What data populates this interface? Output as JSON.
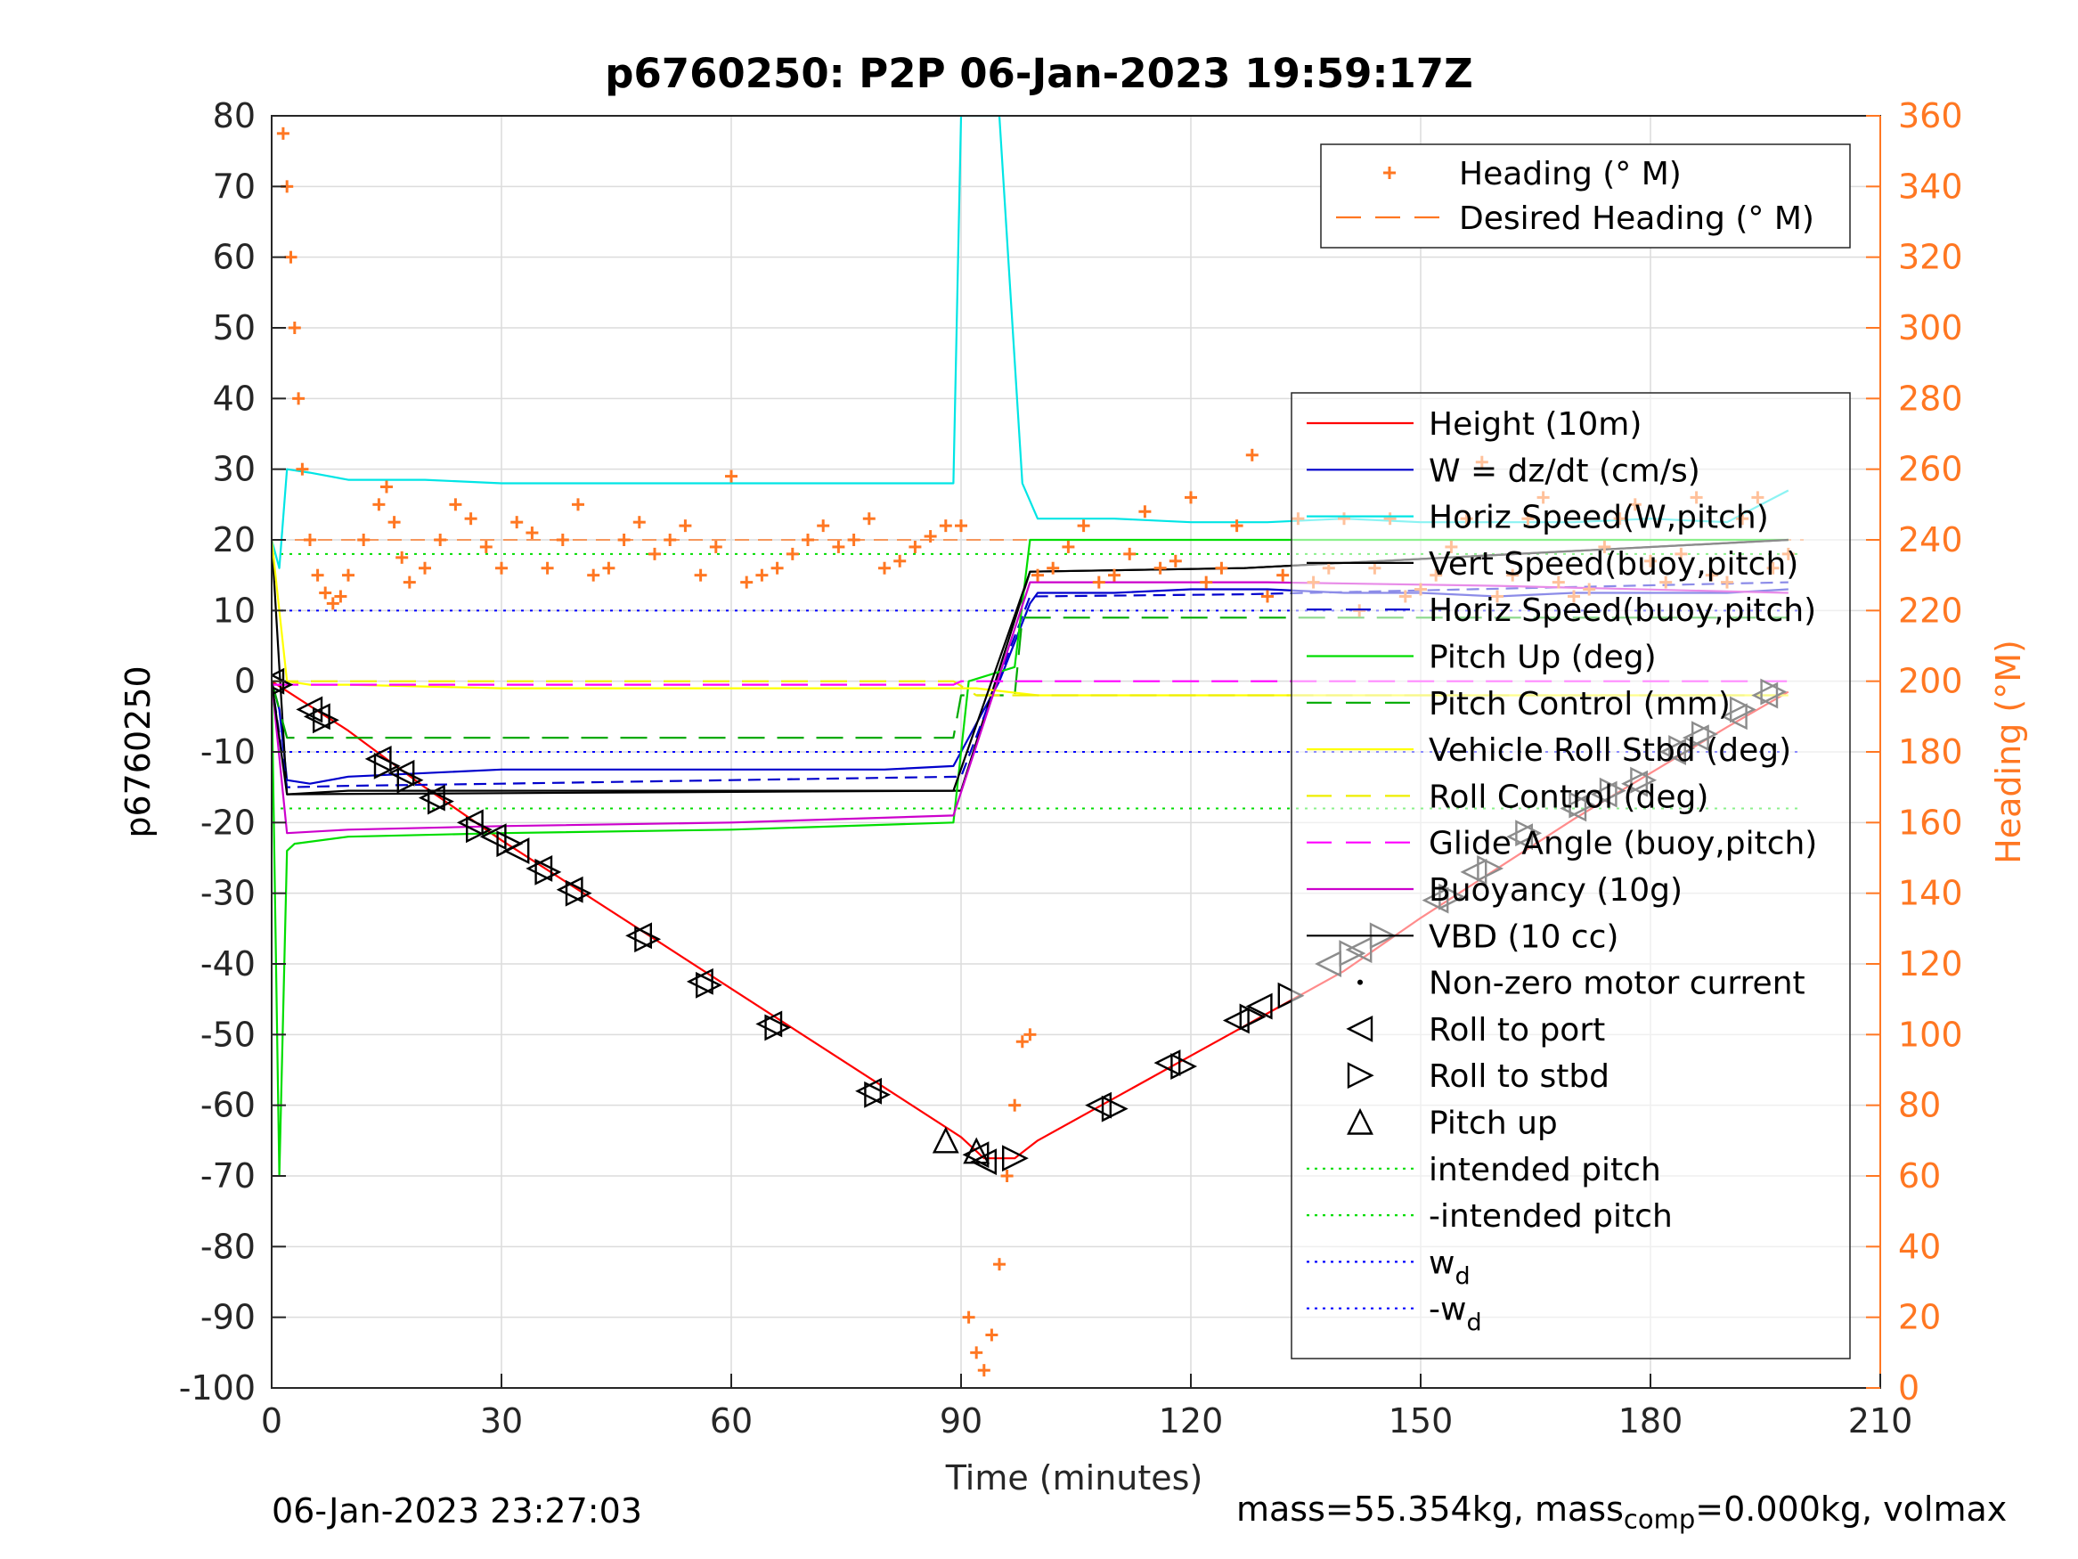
{
  "chart_data": {
    "type": "line",
    "title": "p6760250: P2P 06-Jan-2023 19:59:17Z",
    "xlabel": "Time (minutes)",
    "ylabel": "p6760250",
    "y2label": "Heading (°M)",
    "xlim": [
      0,
      210
    ],
    "ylim": [
      -100,
      80
    ],
    "y2lim": [
      0,
      360
    ],
    "xticks": [
      "0",
      "30",
      "60",
      "90",
      "120",
      "150",
      "180",
      "210"
    ],
    "yticks": [
      "80",
      "70",
      "60",
      "50",
      "40",
      "30",
      "20",
      "10",
      "0",
      "-10",
      "-20",
      "-30",
      "-40",
      "-50",
      "-60",
      "-70",
      "-80",
      "-90",
      "-100"
    ],
    "y2ticks": [
      "360",
      "340",
      "320",
      "300",
      "280",
      "260",
      "240",
      "220",
      "200",
      "180",
      "160",
      "140",
      "120",
      "100",
      "80",
      "60",
      "40",
      "20",
      "0"
    ],
    "grid": true,
    "colors": {
      "height": "#ff0000",
      "w": "#0000cc",
      "horiz_w": "#00e5e5",
      "vert_buoy": "#000000",
      "horiz_buoy": "#0000cc",
      "pitch": "#00dd00",
      "pitch_ctrl": "#00aa00",
      "roll": "#ffff00",
      "roll_ctrl": "#eeee00",
      "glide": "#ff00ff",
      "buoy": "#cc00cc",
      "vbd": "#000000",
      "intended": "#00dd00",
      "wd": "#0000ff",
      "heading": "#ff7722",
      "axis2": "#ff7722"
    },
    "top_legend": [
      {
        "label": "Heading (° M)",
        "style": "plus",
        "color": "#ff7722"
      },
      {
        "label": "Desired Heading (° M)",
        "style": "dash",
        "color": "#ff7722"
      }
    ],
    "legend": [
      {
        "label": "Height (10m)",
        "style": "line",
        "color": "#ff0000"
      },
      {
        "label": "W = dz/dt (cm/s)",
        "style": "line",
        "color": "#0000cc"
      },
      {
        "label": "Horiz Speed(W,pitch)",
        "style": "line",
        "color": "#00e5e5"
      },
      {
        "label": "Vert Speed(buoy,pitch)",
        "style": "line",
        "color": "#000000"
      },
      {
        "label": "Horiz Speed(buoy,pitch)",
        "style": "dash",
        "color": "#0000cc"
      },
      {
        "label": "Pitch Up (deg)",
        "style": "line",
        "color": "#00dd00"
      },
      {
        "label": "Pitch Control (mm)",
        "style": "dash",
        "color": "#00aa00"
      },
      {
        "label": "Vehicle Roll Stbd (deg)",
        "style": "line",
        "color": "#ffff00"
      },
      {
        "label": "Roll Control (deg)",
        "style": "dash",
        "color": "#eeee00"
      },
      {
        "label": "Glide Angle (buoy,pitch)",
        "style": "dash",
        "color": "#ff00ff"
      },
      {
        "label": "Buoyancy (10g)",
        "style": "line",
        "color": "#cc00cc"
      },
      {
        "label": "VBD (10 cc)",
        "style": "line",
        "color": "#000000"
      },
      {
        "label": "Non-zero motor current",
        "style": "dot",
        "color": "#000000"
      },
      {
        "label": "Roll to port",
        "style": "tri-left",
        "color": "#000000"
      },
      {
        "label": "Roll to stbd",
        "style": "tri-right",
        "color": "#000000"
      },
      {
        "label": "Pitch up",
        "style": "tri-up",
        "color": "#000000"
      },
      {
        "label": "intended pitch",
        "style": "dotted",
        "color": "#00dd00"
      },
      {
        "label": "-intended pitch",
        "style": "dotted",
        "color": "#00dd00"
      },
      {
        "label": "w",
        "sub": "d",
        "style": "dotted",
        "color": "#0000ff"
      },
      {
        "label": "-w",
        "sub": "d",
        "style": "dotted",
        "color": "#0000ff"
      }
    ],
    "series": [
      {
        "name": "Height (10m)",
        "color": "#ff0000",
        "x": [
          0,
          10,
          20,
          30,
          40,
          50,
          60,
          70,
          80,
          90,
          93,
          97,
          100,
          110,
          120,
          130,
          140,
          150,
          160,
          170,
          180,
          190,
          198
        ],
        "y": [
          0,
          -7,
          -15,
          -22.5,
          -29.5,
          -36.5,
          -43.5,
          -50.5,
          -57.5,
          -64.5,
          -67.5,
          -67.5,
          -65,
          -59,
          -53,
          -47,
          -41,
          -33.5,
          -26.5,
          -19.5,
          -13,
          -6.5,
          -1.5
        ]
      },
      {
        "name": "W = dz/dt (cm/s)",
        "color": "#0000cc",
        "x": [
          0,
          1,
          2,
          5,
          10,
          20,
          30,
          40,
          50,
          60,
          70,
          80,
          89,
          91,
          95,
          99,
          100,
          110,
          120,
          130,
          140,
          150,
          160,
          170,
          180,
          190,
          198
        ],
        "y": [
          0,
          -4,
          -14,
          -14.5,
          -13.5,
          -13,
          -12.5,
          -12.5,
          -12.5,
          -12.5,
          -12.5,
          -12.5,
          -12,
          -8,
          0,
          11,
          12.5,
          12.5,
          13,
          13,
          12.5,
          12.5,
          12,
          12.5,
          12.5,
          12.5,
          13
        ]
      },
      {
        "name": "Horiz Speed(W,pitch)",
        "color": "#00e5e5",
        "x": [
          0,
          1,
          2,
          5,
          10,
          20,
          30,
          40,
          50,
          60,
          70,
          80,
          89,
          90,
          95,
          98,
          100,
          110,
          120,
          130,
          140,
          150,
          160,
          170,
          180,
          190,
          198
        ],
        "y": [
          20,
          16,
          30,
          29.5,
          28.5,
          28.5,
          28,
          28,
          28,
          28,
          28,
          28,
          28,
          80,
          80,
          28,
          23,
          23,
          22.5,
          22.5,
          23,
          22.5,
          22.5,
          22.5,
          23,
          22.5,
          27
        ]
      },
      {
        "name": "Vert Speed(buoy,pitch)",
        "color": "#000000",
        "x": [
          0,
          2,
          10,
          30,
          60,
          90,
          99,
          127,
          198
        ],
        "y": [
          20,
          -16,
          -15.5,
          -15.5,
          -15.5,
          -15.5,
          15.5,
          16,
          20
        ]
      },
      {
        "name": "Horiz Speed(buoy,pitch)",
        "color": "#0000cc",
        "x": [
          0,
          2,
          10,
          30,
          60,
          90,
          99,
          127,
          198
        ],
        "y": [
          0,
          -15,
          -14.8,
          -14.5,
          -14,
          -13.5,
          12,
          12.3,
          14
        ]
      },
      {
        "name": "Pitch Up (deg)",
        "color": "#00dd00",
        "x": [
          0,
          1,
          2,
          3,
          10,
          30,
          60,
          89,
          91,
          97,
          99,
          100,
          130,
          160,
          198
        ],
        "y": [
          0,
          -70,
          -24,
          -23,
          -22,
          -21.5,
          -21,
          -20,
          0,
          2,
          20,
          20,
          20,
          20,
          20
        ]
      },
      {
        "name": "Pitch Control (mm)",
        "color": "#00aa00",
        "x": [
          0,
          2,
          89,
          90,
          97,
          98,
          198
        ],
        "y": [
          0,
          -8,
          -8,
          -2,
          -2,
          9,
          9
        ]
      },
      {
        "name": "Vehicle Roll Stbd (deg)",
        "color": "#ffff00",
        "x": [
          0,
          2,
          5,
          10,
          30,
          60,
          89,
          92,
          100,
          130,
          160,
          198
        ],
        "y": [
          20,
          0,
          -0.5,
          -0.5,
          -1,
          -1,
          -1,
          -1,
          -2,
          -2,
          -2,
          -2
        ]
      },
      {
        "name": "Roll Control (deg)",
        "color": "#eeee00",
        "x": [
          0,
          89,
          92,
          198
        ],
        "y": [
          0,
          0,
          -2,
          -2
        ]
      },
      {
        "name": "Glide Angle (buoy,pitch)",
        "color": "#ff00ff",
        "x": [
          0,
          89,
          90,
          198
        ],
        "y": [
          -0.5,
          -0.5,
          0,
          0
        ]
      },
      {
        "name": "Buoyancy (10g)",
        "color": "#cc00cc",
        "x": [
          0,
          2,
          10,
          30,
          60,
          89,
          99,
          130,
          160,
          198
        ],
        "y": [
          0,
          -21.5,
          -21,
          -20.5,
          -20,
          -19,
          14,
          14,
          13.5,
          12.5
        ]
      },
      {
        "name": "VBD (10 cc)",
        "color": "#000000",
        "x": [
          0,
          2,
          89,
          99,
          127,
          198
        ],
        "y": [
          0,
          -16,
          -15.5,
          15.5,
          16,
          20
        ]
      }
    ],
    "reference_lines": [
      {
        "name": "intended pitch",
        "y": 18,
        "color": "#00dd00"
      },
      {
        "name": "-intended pitch",
        "y": -18,
        "color": "#00dd00"
      },
      {
        "name": "w_d",
        "y": 10,
        "color": "#0000ff"
      },
      {
        "name": "-w_d",
        "y": -10,
        "color": "#0000ff"
      }
    ],
    "desired_heading": 240,
    "heading": {
      "color": "#ff7722",
      "x": [
        1.5,
        2,
        2.5,
        3,
        3.5,
        4,
        5,
        6,
        7,
        8,
        9,
        10,
        12,
        14,
        15,
        16,
        17,
        18,
        20,
        22,
        24,
        26,
        28,
        30,
        32,
        34,
        36,
        38,
        40,
        42,
        44,
        46,
        48,
        50,
        52,
        54,
        56,
        58,
        60,
        62,
        64,
        66,
        68,
        70,
        72,
        74,
        76,
        78,
        80,
        82,
        84,
        86,
        88,
        90,
        91,
        92,
        93,
        94,
        95,
        96,
        97,
        98,
        99,
        100,
        102,
        104,
        106,
        108,
        110,
        112,
        114,
        116,
        118,
        120,
        122,
        124,
        126,
        128,
        130,
        132,
        134,
        136,
        138,
        140,
        142,
        144,
        146,
        148,
        150,
        152,
        154,
        156,
        158,
        160,
        162,
        164,
        166,
        168,
        170,
        172,
        174,
        176,
        178,
        180,
        182,
        184,
        186,
        188,
        190,
        192,
        194,
        196,
        198
      ],
      "y": [
        355,
        340,
        320,
        300,
        280,
        260,
        240,
        230,
        225,
        222,
        224,
        230,
        240,
        250,
        255,
        245,
        235,
        228,
        232,
        240,
        250,
        246,
        238,
        232,
        245,
        242,
        232,
        240,
        250,
        230,
        232,
        240,
        245,
        236,
        240,
        244,
        230,
        238,
        258,
        228,
        230,
        232,
        236,
        240,
        244,
        238,
        240,
        246,
        232,
        234,
        238,
        241,
        244,
        244,
        20,
        10,
        5,
        15,
        35,
        60,
        80,
        98,
        100,
        230,
        232,
        238,
        244,
        228,
        230,
        236,
        248,
        232,
        234,
        252,
        228,
        232,
        244,
        264,
        224,
        230,
        246,
        228,
        232,
        246,
        220,
        232,
        246,
        224,
        226,
        230,
        238,
        246,
        262,
        224,
        230,
        246,
        252,
        228,
        224,
        226,
        238,
        246,
        250,
        234,
        228,
        236,
        252,
        230,
        228,
        246,
        252,
        232,
        236
      ]
    },
    "markers": {
      "roll_to_port": {
        "x": [
          0,
          5,
          6,
          14,
          17,
          21,
          26,
          29,
          32,
          35,
          39,
          48,
          56,
          65,
          78,
          92,
          93,
          108,
          117,
          126,
          129,
          138,
          142,
          152,
          157,
          163,
          170,
          174,
          178,
          183,
          186,
          191,
          195
        ],
        "y": [
          0,
          -4,
          -5,
          -11,
          -13,
          -16.5,
          -20,
          -22,
          -24,
          -26.5,
          -29.5,
          -36,
          -42.5,
          -48.5,
          -58,
          -67,
          -68,
          -60,
          -54,
          -48,
          -46,
          -40,
          -38,
          -31,
          -27,
          -22,
          -18,
          -16,
          -14.5,
          -10,
          -8,
          -5,
          -2
        ]
      },
      "roll_to_stbd": {
        "x": [
          1,
          7,
          15,
          18,
          22,
          27,
          31,
          36,
          40,
          49,
          57,
          66,
          79,
          97,
          110,
          119,
          128,
          133,
          141,
          145,
          154,
          159,
          164,
          171,
          175,
          179,
          184,
          187,
          192,
          196
        ],
        "y": [
          -0.5,
          -5.5,
          -12,
          -14,
          -17,
          -21,
          -23,
          -27,
          -30,
          -36.5,
          -43,
          -49,
          -58.5,
          -67.5,
          -60.5,
          -54.5,
          -47.5,
          -44.5,
          -38.5,
          -36,
          -30.5,
          -26.5,
          -21.5,
          -17.5,
          -15.5,
          -14,
          -9.5,
          -7.5,
          -4,
          -1.5
        ]
      },
      "pitch_up": {
        "x": [
          88,
          92
        ],
        "y": [
          -65,
          -66.5
        ]
      }
    }
  },
  "footer": {
    "timestamp": "06-Jan-2023 23:27:03",
    "mass_text": "mass=55.354kg, mass",
    "mass_sub": "comp",
    "mass_rest": "=0.000kg, volmax"
  }
}
